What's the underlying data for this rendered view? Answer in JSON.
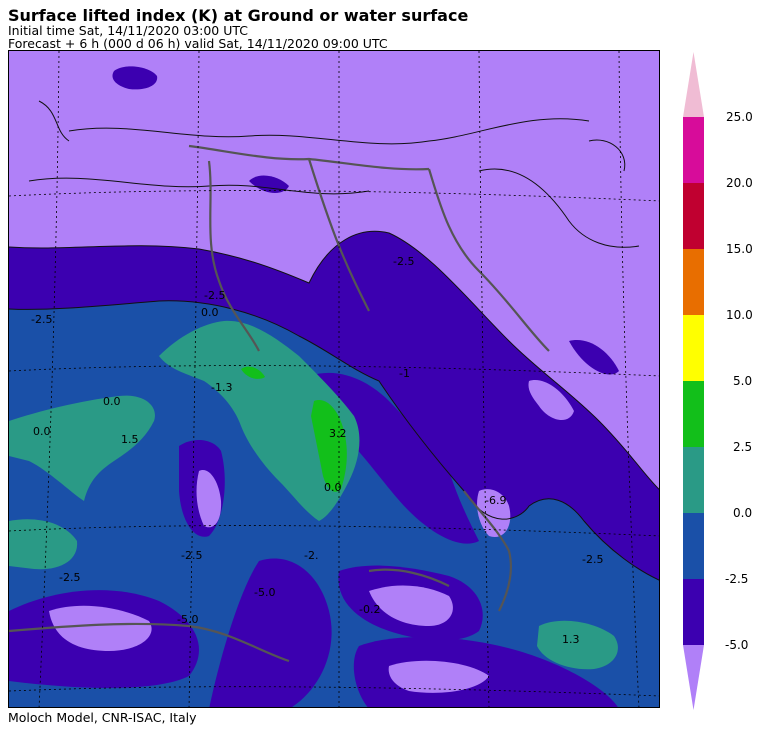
{
  "header": {
    "title": "Surface lifted index (K) at Ground or water surface",
    "initial_time": "Initial time  Sat, 14/11/2020  03:00 UTC",
    "forecast": "Forecast  +   6 h  (000 d 06 h)  valid Sat, 14/11/2020 09:00 UTC"
  },
  "footer": {
    "credit": "Moloch Model, CNR-ISAC, Italy"
  },
  "colorbar": {
    "labels": [
      "25.0",
      "20.0",
      "15.0",
      "10.0",
      "5.0",
      "2.5",
      "0.0",
      "-2.5",
      "-5.0"
    ],
    "colors": {
      "above_25": "#f0bcd4",
      "20_25": "#d70c9a",
      "15_20": "#c00030",
      "10_15": "#e86e00",
      "5_10": "#ffff00",
      "2.5_5": "#12bf1a",
      "0_2.5": "#2a9a86",
      "-2.5_0": "#1a50a8",
      "-5_-2.5": "#3c00b0",
      "below_-5": "#b080f8"
    }
  },
  "map": {
    "contour_labels": [
      "-2.5",
      "-2.5",
      "0.0",
      "-2.5",
      "0.0",
      "0.0",
      "1.5",
      "-1.3",
      "3.2",
      "0.0",
      "-2.5",
      "-5.0",
      "-2.5",
      "-6.9",
      "-0.2",
      "1.3",
      "-2.5",
      "-5.0",
      "-2.",
      "-1"
    ]
  }
}
